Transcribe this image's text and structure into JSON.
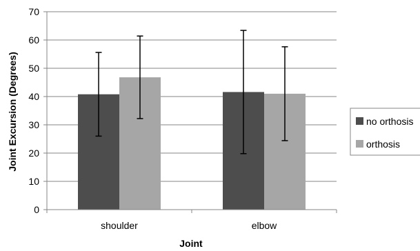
{
  "chart_data": {
    "type": "bar",
    "categories": [
      "shoulder",
      "elbow"
    ],
    "series": [
      {
        "name": "no orthosis",
        "values": [
          40.8,
          41.6
        ],
        "error": [
          14.8,
          21.8
        ],
        "color": "#4d4d4d"
      },
      {
        "name": "orthosis",
        "values": [
          46.8,
          41.0
        ],
        "error": [
          14.6,
          16.6
        ],
        "color": "#a6a6a6"
      }
    ],
    "xlabel": "Joint",
    "ylabel": "Joint Excursion (Degrees)",
    "ylim": [
      0,
      70
    ],
    "yticks": [
      "0",
      "10",
      "20",
      "30",
      "40",
      "50",
      "60",
      "70"
    ],
    "grid": "horizontal",
    "legend_position": "right"
  }
}
